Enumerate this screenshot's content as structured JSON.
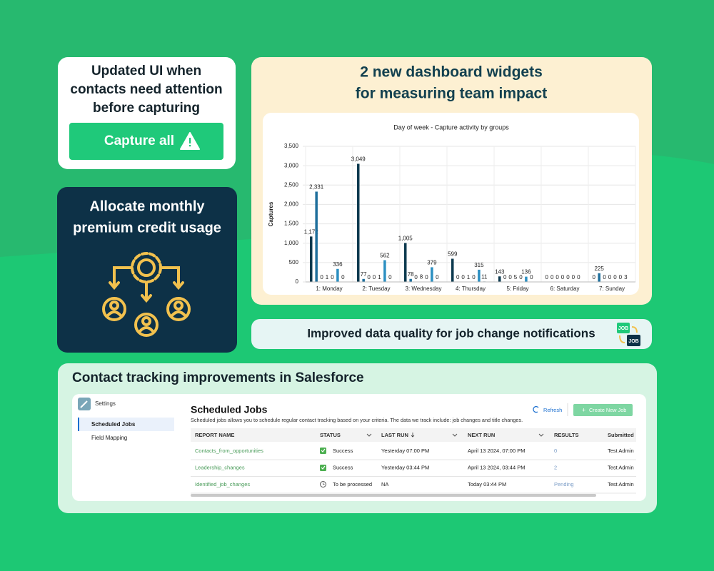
{
  "card_attention": {
    "title_lines": [
      "Updated UI when",
      "contacts need attention",
      "before capturing"
    ],
    "button": "Capture all"
  },
  "card_credit": {
    "title_lines": [
      "Allocate monthly",
      "premium credit usage"
    ]
  },
  "card_widgets": {
    "title_lines": [
      "2 new dashboard widgets",
      "for measuring team impact"
    ]
  },
  "chart_data": {
    "type": "bar",
    "title": "Day of week - Capture activity by groups",
    "y_label": "Captures",
    "categories": [
      "1: Monday",
      "2: Tuesday",
      "3: Wednesday",
      "4: Thursday",
      "5: Friday",
      "6: Saturday",
      "7: Sunday"
    ],
    "series": [
      {
        "color": "#0d3a4f",
        "values": [
          1172,
          3049,
          1005,
          599,
          143,
          0,
          0
        ],
        "value_labels": [
          "1,172",
          "3,049",
          "1,005",
          "599",
          "143",
          "0",
          "0"
        ]
      },
      {
        "color": "#1f6f9c",
        "values": [
          2331,
          77,
          78,
          0,
          0,
          0,
          225
        ],
        "value_labels": [
          "2,331",
          "77",
          "78",
          "0",
          "0",
          "0",
          "225"
        ]
      },
      {
        "color": "#0d3a4f",
        "values": [
          0,
          0,
          0,
          0,
          0,
          0,
          0
        ]
      },
      {
        "color": "#0d3a4f",
        "values": [
          1,
          0,
          8,
          1,
          5,
          0,
          0
        ]
      },
      {
        "color": "#0d3a4f",
        "values": [
          0,
          1,
          0,
          0,
          0,
          0,
          0
        ]
      },
      {
        "color": "#2b8fc1",
        "values": [
          336,
          562,
          379,
          315,
          136,
          0,
          0
        ]
      },
      {
        "color": "#0d3a4f",
        "values": [
          0,
          0,
          0,
          11,
          0,
          0,
          3
        ]
      }
    ],
    "ylim": [
      0,
      3500
    ],
    "yticks": [
      0,
      500,
      {
        "value": 1000,
        "label": "1,000"
      },
      {
        "value": 1500,
        "label": "1,500"
      },
      {
        "value": 2000,
        "label": "2,000"
      },
      {
        "value": 2500,
        "label": "2,500"
      },
      {
        "value": 3000,
        "label": "3,000"
      },
      {
        "value": 3500,
        "label": "3,500"
      }
    ],
    "grid": true
  },
  "card_quality": {
    "title": "Improved data quality for job change notifications",
    "icon_labels": [
      "JOB",
      "JOB"
    ]
  },
  "card_salesforce": {
    "title": "Contact tracking improvements in Salesforce",
    "sidebar": {
      "title": "Settings",
      "items": [
        "Scheduled Jobs",
        "Field Mapping"
      ]
    },
    "heading": "Scheduled Jobs",
    "description": "Scheduled jobs allows you to schedule regular contact tracking based on your criteria. The data we track include: job changes and title changes.",
    "refresh": "Refresh",
    "create": "Create New Job",
    "table": {
      "columns": [
        "REPORT NAME",
        "STATUS",
        "LAST RUN",
        "NEXT RUN",
        "RESULTS",
        "Submitted"
      ],
      "rows": [
        [
          "Contacts_from_opportunities",
          "Success",
          "Yesterday 07:00 PM",
          "April 13 2024, 07:00 PM",
          "0",
          "Test Admin"
        ],
        [
          "Leadership_changes",
          "Success",
          "Yesterday 03:44 PM",
          "April 13 2024, 03:44 PM",
          "2",
          "Test Admin"
        ],
        [
          "Identified_job_changes",
          "To be processed",
          "NA",
          "Today 03:44 PM",
          "Pending",
          "Test Admin"
        ]
      ]
    }
  }
}
